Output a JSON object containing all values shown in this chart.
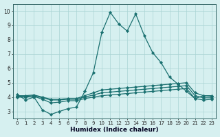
{
  "x": [
    0,
    1,
    2,
    3,
    4,
    5,
    6,
    7,
    8,
    9,
    10,
    11,
    12,
    13,
    14,
    15,
    16,
    17,
    18,
    19,
    20,
    21,
    22,
    23
  ],
  "series_main": [
    4.2,
    3.8,
    4.0,
    3.1,
    2.8,
    3.0,
    3.2,
    3.3,
    4.4,
    5.7,
    8.5,
    9.9,
    9.1,
    8.6,
    9.8,
    8.3,
    7.1,
    6.4,
    5.4,
    4.9,
    4.4,
    3.9,
    4.1,
    4.1
  ],
  "series_line2": [
    4.1,
    4.1,
    4.15,
    4.0,
    3.85,
    3.85,
    3.9,
    3.9,
    4.1,
    4.3,
    4.5,
    4.55,
    4.6,
    4.65,
    4.7,
    4.75,
    4.8,
    4.85,
    4.9,
    4.95,
    5.0,
    4.3,
    4.1,
    4.05
  ],
  "series_line3": [
    4.05,
    4.05,
    4.1,
    3.95,
    3.8,
    3.8,
    3.85,
    3.85,
    4.0,
    4.15,
    4.3,
    4.35,
    4.4,
    4.45,
    4.5,
    4.55,
    4.6,
    4.65,
    4.7,
    4.75,
    4.8,
    4.1,
    3.95,
    3.95
  ],
  "series_line4": [
    4.0,
    4.0,
    4.05,
    3.85,
    3.6,
    3.65,
    3.75,
    3.75,
    3.9,
    4.0,
    4.1,
    4.15,
    4.2,
    4.25,
    4.3,
    4.35,
    4.4,
    4.45,
    4.5,
    4.55,
    4.6,
    3.9,
    3.8,
    3.85
  ],
  "color": "#1a7070",
  "bg_color": "#d6f0f0",
  "grid_color": "#aad4d4",
  "xlabel": "Humidex (Indice chaleur)",
  "ylim": [
    2.5,
    10.5
  ],
  "xlim": [
    -0.5,
    23.5
  ],
  "yticks": [
    3,
    4,
    5,
    6,
    7,
    8,
    9,
    10
  ],
  "xticks": [
    0,
    1,
    2,
    3,
    4,
    5,
    6,
    7,
    8,
    9,
    10,
    11,
    12,
    13,
    14,
    15,
    16,
    17,
    18,
    19,
    20,
    21,
    22,
    23
  ]
}
